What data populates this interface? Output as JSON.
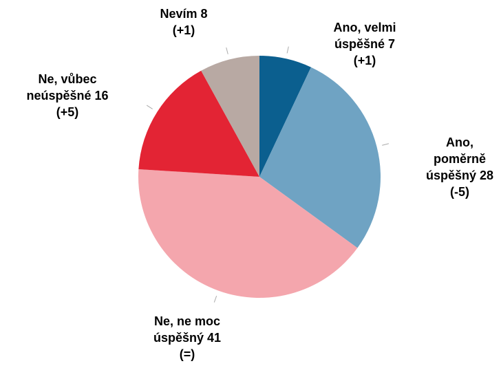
{
  "chart_data": {
    "type": "pie",
    "categories": [
      "Ano, velmi úspěšné",
      "Ano, poměrně úspěšný",
      "Ne, ne moc úspěšný",
      "Ne, vůbec neúspěšné",
      "Nevím"
    ],
    "values": [
      7,
      28,
      41,
      16,
      8
    ],
    "changes": [
      "(+1)",
      "(-5)",
      "(=)",
      "(+5)",
      "(+1)"
    ],
    "colors": [
      "#0b5f8f",
      "#6fa3c3",
      "#f4a6ad",
      "#e32434",
      "#b8a9a3"
    ]
  }
}
